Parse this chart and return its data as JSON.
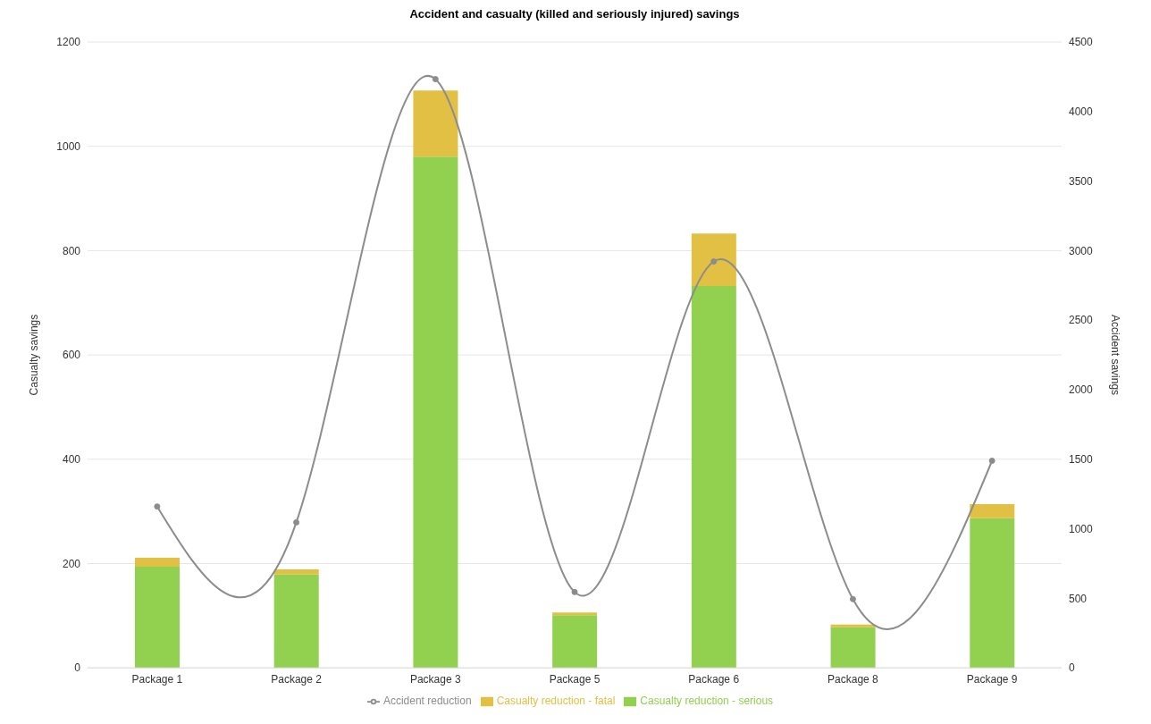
{
  "chart_data": {
    "type": "bar",
    "title": "Accident and casualty (killed and seriously injured) savings",
    "ylabel": "Casualty savings",
    "y2label": "Accident savings",
    "categories": [
      "Package 1",
      "Package 2",
      "Package 3",
      "Package 5",
      "Package 6",
      "Package 8",
      "Package 9"
    ],
    "stacked": true,
    "series": [
      {
        "name": "Casualty reduction - serious",
        "color": "#92d050",
        "values": [
          194,
          179,
          980,
          101,
          732,
          78,
          287
        ]
      },
      {
        "name": "Casualty reduction - fatal",
        "color": "#e2c044",
        "values": [
          17,
          10,
          127,
          5,
          101,
          5,
          27
        ]
      },
      {
        "name": "Accident reduction",
        "type": "line",
        "axis": "y2",
        "color": "#8c8c8c",
        "marker": "circle",
        "values": [
          1160,
          1046,
          4233,
          545,
          2922,
          494,
          1489
        ]
      }
    ],
    "ylim": [
      0,
      1200
    ],
    "yticks": [
      0,
      200,
      400,
      600,
      800,
      1000,
      1200
    ],
    "y2lim": [
      0,
      4500
    ],
    "y2ticks": [
      0,
      500,
      1000,
      1500,
      2000,
      2500,
      3000,
      3500,
      4000,
      4500
    ],
    "grid": "y",
    "legend": "bottom"
  }
}
